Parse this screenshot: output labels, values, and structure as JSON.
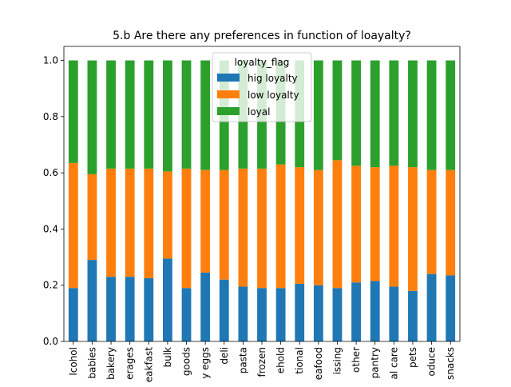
{
  "chart_data": {
    "type": "bar",
    "stacked": true,
    "title": "5.b Are there any preferences in function of loayalty?",
    "xlabel": "",
    "ylabel": "",
    "ylim": [
      0,
      1.0
    ],
    "yticks": [
      "0.0",
      "0.2",
      "0.4",
      "0.6",
      "0.8",
      "1.0"
    ],
    "grid": false,
    "legend": {
      "title": "loyalty_flag",
      "placement": "top-center"
    },
    "categories": [
      "lcohol",
      "babies",
      "bakery",
      "erages",
      "eakfast",
      "bulk",
      "goods",
      "y eggs",
      "deli",
      "pasta",
      "frozen",
      "ehold",
      "tional",
      "eafood",
      "issing",
      "other",
      "pantry",
      "al care",
      "pets",
      "oduce",
      "snacks"
    ],
    "series": [
      {
        "name": "hig loyalty",
        "color": "#1f77b4",
        "values": [
          0.19,
          0.29,
          0.23,
          0.23,
          0.225,
          0.295,
          0.19,
          0.245,
          0.22,
          0.195,
          0.19,
          0.19,
          0.205,
          0.2,
          0.19,
          0.21,
          0.215,
          0.195,
          0.18,
          0.24,
          0.235
        ]
      },
      {
        "name": "low loyalty",
        "color": "#ff7f0e",
        "values": [
          0.445,
          0.305,
          0.385,
          0.385,
          0.39,
          0.31,
          0.425,
          0.365,
          0.39,
          0.42,
          0.425,
          0.44,
          0.415,
          0.41,
          0.455,
          0.415,
          0.405,
          0.43,
          0.44,
          0.37,
          0.375
        ]
      },
      {
        "name": "loyal",
        "color": "#2ca02c",
        "values": [
          0.365,
          0.405,
          0.385,
          0.385,
          0.385,
          0.395,
          0.385,
          0.39,
          0.39,
          0.385,
          0.385,
          0.37,
          0.38,
          0.39,
          0.355,
          0.375,
          0.38,
          0.375,
          0.38,
          0.39,
          0.39
        ]
      }
    ]
  }
}
